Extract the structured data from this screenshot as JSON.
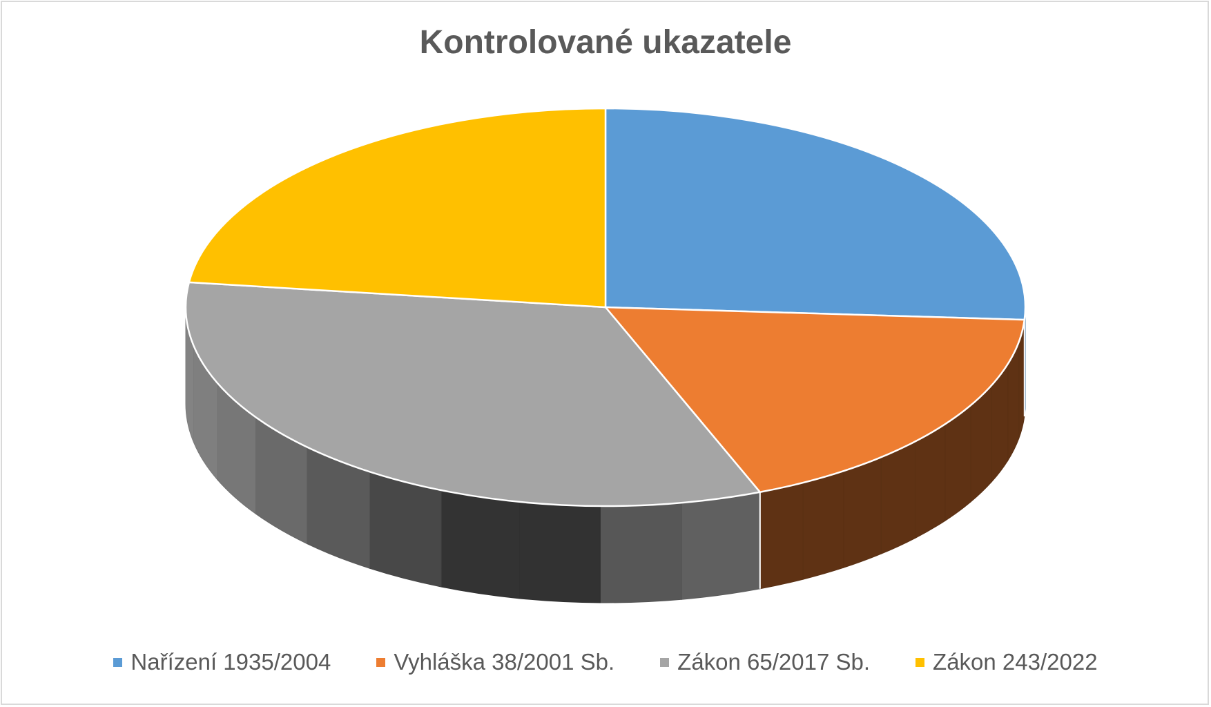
{
  "chart_data": {
    "type": "pie",
    "title": "Kontrolované ukazatele",
    "style": "3d",
    "legend_position": "bottom",
    "series": [
      {
        "categories": [
          "Nařízení 1935/2004",
          "Vyhláška 38/2001 Sb.",
          "Zákon 65/2017 Sb.",
          "Zákon 243/2022"
        ],
        "values": [
          26,
          18,
          33,
          23
        ],
        "colors": [
          "#5b9bd5",
          "#ed7d31",
          "#a5a5a5",
          "#ffc000"
        ]
      }
    ]
  }
}
